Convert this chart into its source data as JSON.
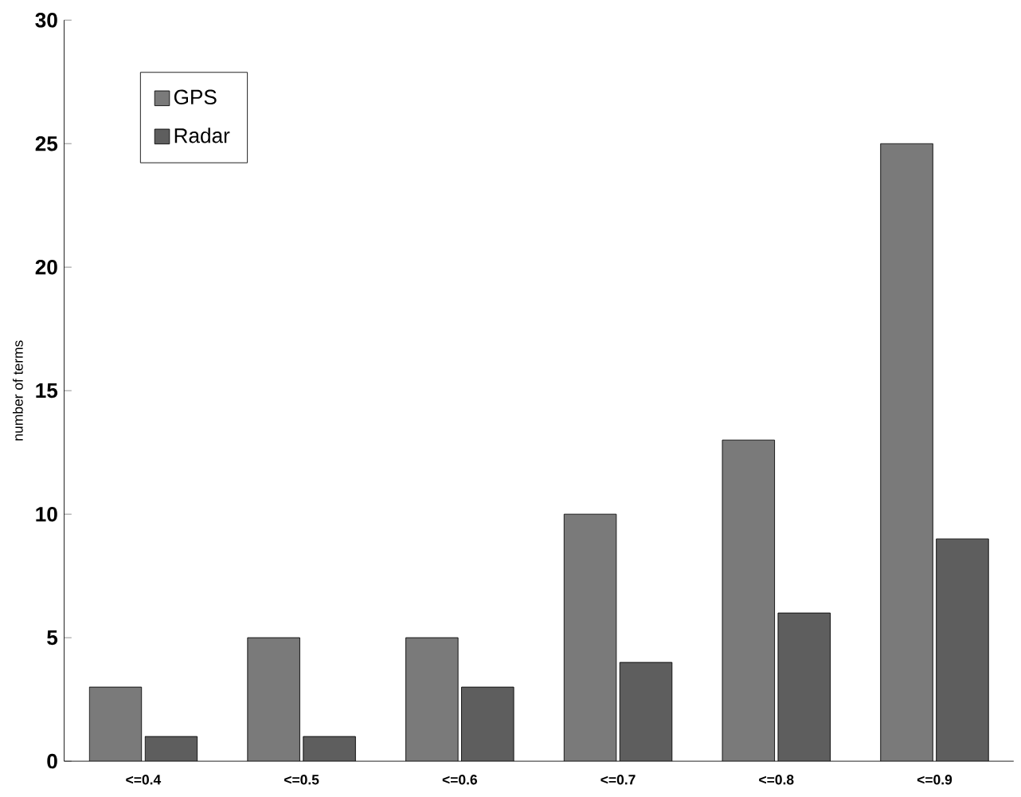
{
  "chart_data": {
    "type": "bar",
    "ylabel": "number of terms",
    "categories": [
      "<=0.4",
      "<=0.5",
      "<=0.6",
      "<=0.7",
      "<=0.8",
      "<=0.9"
    ],
    "series": [
      {
        "name": "GPS",
        "color": "#7a7a7a",
        "values": [
          3,
          5,
          5,
          10,
          13,
          25
        ]
      },
      {
        "name": "Radar",
        "color": "#5e5e5e",
        "values": [
          1,
          1,
          3,
          4,
          6,
          9
        ]
      }
    ],
    "ylim": [
      0,
      30
    ],
    "yticks": [
      0,
      5,
      10,
      15,
      20,
      25,
      30
    ],
    "grid": false,
    "legend": "top left"
  }
}
